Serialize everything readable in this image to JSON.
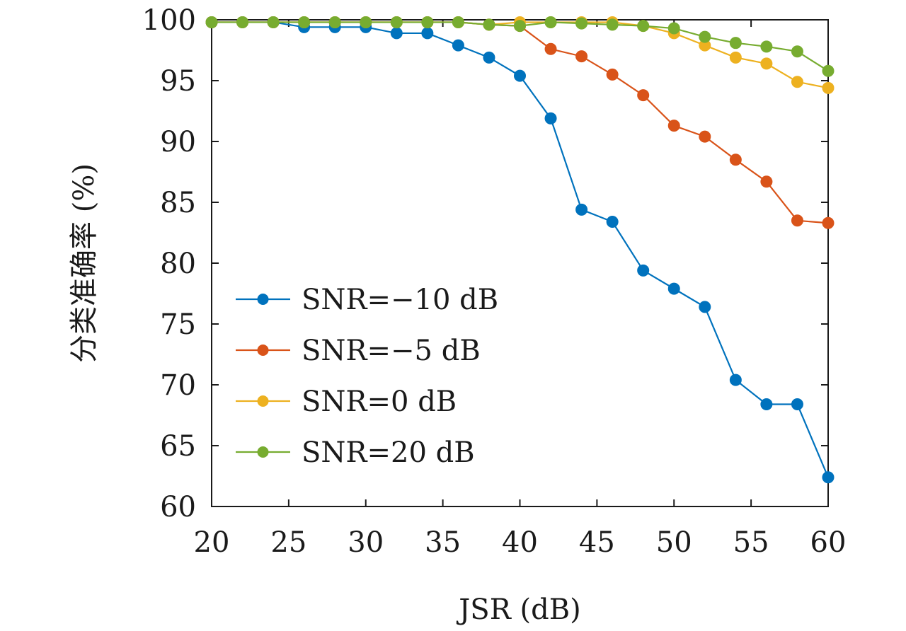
{
  "chart_data": {
    "type": "line",
    "title": "",
    "xlabel": "JSR (dB)",
    "ylabel": "分类准确率 (%)",
    "xlim": [
      20,
      60
    ],
    "ylim": [
      60,
      100
    ],
    "xticks": [
      20,
      25,
      30,
      35,
      40,
      45,
      50,
      55,
      60
    ],
    "yticks": [
      60,
      65,
      70,
      75,
      80,
      85,
      90,
      95,
      100
    ],
    "grid": false,
    "legend_position": "bottom-left",
    "x": [
      20,
      22,
      24,
      26,
      28,
      30,
      32,
      34,
      36,
      38,
      40,
      42,
      44,
      46,
      48,
      50,
      52,
      54,
      56,
      58,
      60
    ],
    "series": [
      {
        "name": "SNR=−10 dB",
        "color": "#0072BD",
        "values": [
          99.8,
          99.8,
          99.8,
          99.4,
          99.4,
          99.4,
          98.9,
          98.9,
          97.9,
          96.9,
          95.4,
          91.9,
          84.4,
          83.4,
          79.4,
          77.9,
          76.4,
          70.4,
          68.4,
          68.4,
          62.4
        ]
      },
      {
        "name": "SNR=−5 dB",
        "color": "#D95319",
        "values": [
          99.8,
          99.8,
          99.8,
          99.8,
          99.8,
          99.8,
          99.8,
          99.8,
          99.8,
          99.6,
          99.5,
          97.6,
          97.0,
          95.5,
          93.8,
          91.3,
          90.4,
          88.5,
          86.7,
          83.5,
          83.3
        ]
      },
      {
        "name": "SNR=0 dB",
        "color": "#EDB120",
        "values": [
          99.8,
          99.8,
          99.8,
          99.8,
          99.8,
          99.8,
          99.8,
          99.8,
          99.8,
          99.6,
          99.8,
          99.8,
          99.8,
          99.8,
          99.5,
          98.9,
          97.9,
          96.9,
          96.4,
          94.9,
          94.4
        ]
      },
      {
        "name": "SNR=20 dB",
        "color": "#77AC30",
        "values": [
          99.8,
          99.8,
          99.8,
          99.8,
          99.8,
          99.8,
          99.8,
          99.8,
          99.8,
          99.6,
          99.5,
          99.8,
          99.7,
          99.6,
          99.5,
          99.3,
          98.6,
          98.1,
          97.8,
          97.4,
          95.8
        ]
      }
    ]
  }
}
